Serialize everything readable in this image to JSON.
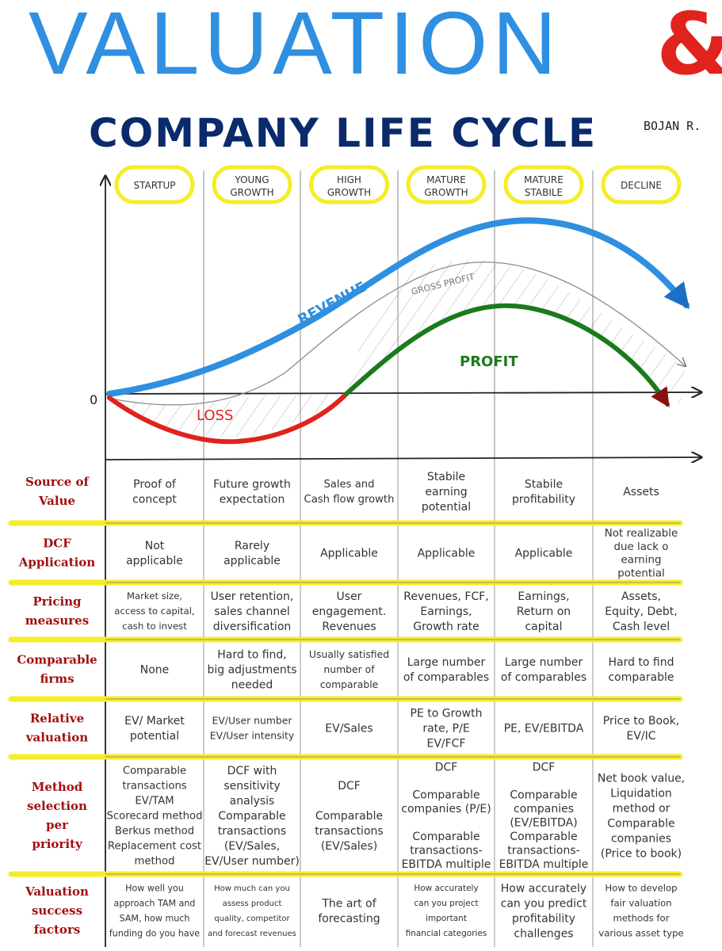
{
  "title": "VALUATION",
  "ampersand": "&",
  "subtitle": "COMPANY LIFE CYCLE",
  "author": "BOJAN R.",
  "stages": [
    {
      "line1": "STARTUP",
      "line2": ""
    },
    {
      "line1": "YOUNG",
      "line2": "GROWTH"
    },
    {
      "line1": "HIGH",
      "line2": "GROWTH"
    },
    {
      "line1": "MATURE",
      "line2": "GROWTH"
    },
    {
      "line1": "MATURE",
      "line2": "STABILE"
    },
    {
      "line1": "DECLINE",
      "line2": ""
    }
  ],
  "curves": {
    "zero": "0",
    "revenue": "REVENUE",
    "gross_profit": "GROSS PROFIT",
    "profit": "PROFIT",
    "loss": "LOSS"
  },
  "colors": {
    "title": "#2f8fe0",
    "ampersand": "#e0231c",
    "subtitle": "#0a2a6b",
    "revenue": "#2f8fe0",
    "profit": "#1c7a1c",
    "loss": "#e0231c",
    "row_label": "#a01010",
    "highlight": "#f6ec2a"
  },
  "rows": [
    {
      "label": [
        "Source of",
        "Value"
      ],
      "cells": [
        [
          "Proof of",
          "concept"
        ],
        [
          "Future growth",
          "expectation"
        ],
        [
          "Sales and",
          "Cash flow growth"
        ],
        [
          "Stabile",
          "earning",
          "potential"
        ],
        [
          "Stabile",
          "profitability"
        ],
        [
          "Assets"
        ]
      ]
    },
    {
      "label": [
        "DCF",
        "Application"
      ],
      "cells": [
        [
          "Not",
          "applicable"
        ],
        [
          "Rarely",
          "applicable"
        ],
        [
          "Applicable"
        ],
        [
          "Applicable"
        ],
        [
          "Applicable"
        ],
        [
          "Not realizable",
          "due lack o",
          "earning",
          "potential"
        ]
      ]
    },
    {
      "label": [
        "Pricing",
        "measures"
      ],
      "cells": [
        [
          "Market size,",
          "access to capital,",
          "cash to invest"
        ],
        [
          "User retention,",
          "sales channel",
          "diversification"
        ],
        [
          "User",
          "engagement.",
          "Revenues"
        ],
        [
          "Revenues, FCF,",
          "Earnings,",
          "Growth rate"
        ],
        [
          "Earnings,",
          "Return on",
          "capital"
        ],
        [
          "Assets,",
          "Equity, Debt,",
          "Cash level"
        ]
      ]
    },
    {
      "label": [
        "Comparable",
        "firms"
      ],
      "cells": [
        [
          "None"
        ],
        [
          "Hard to find,",
          "big adjustments",
          "needed"
        ],
        [
          "Usually satisfied",
          "number of",
          "comparable"
        ],
        [
          "Large number",
          "of comparables"
        ],
        [
          "Large number",
          "of comparables"
        ],
        [
          "Hard to find",
          "comparable"
        ]
      ]
    },
    {
      "label": [
        "Relative",
        "valuation"
      ],
      "cells": [
        [
          "EV/ Market",
          "potential"
        ],
        [
          "EV/User number",
          "EV/User intensity"
        ],
        [
          "EV/Sales"
        ],
        [
          "PE to Growth",
          "rate, P/E",
          "EV/FCF"
        ],
        [
          "PE, EV/EBITDA"
        ],
        [
          "Price to Book,",
          "EV/IC"
        ]
      ]
    },
    {
      "label": [
        "Method",
        "selection",
        "per",
        "priority"
      ],
      "cells": [
        [
          "Comparable",
          "transactions",
          "EV/TAM",
          "Scorecard method",
          "Berkus method",
          "Replacement cost",
          "method"
        ],
        [
          "DCF with",
          "sensitivity",
          "analysis",
          "Comparable",
          "transactions",
          "(EV/Sales,",
          "EV/User number)"
        ],
        [
          "DCF",
          "",
          "Comparable",
          "transactions",
          "(EV/Sales)"
        ],
        [
          "DCF",
          "",
          "Comparable",
          "companies (P/E)",
          "",
          "Comparable",
          "transactions-",
          "EBITDA multiple"
        ],
        [
          "DCF",
          "",
          "Comparable",
          "companies",
          "(EV/EBITDA)",
          "Comparable",
          "transactions-",
          "EBITDA multiple"
        ],
        [
          "Net book value,",
          "Liquidation",
          "method or",
          "Comparable",
          "companies",
          "(Price to book)"
        ]
      ]
    },
    {
      "label": [
        "Valuation",
        "success",
        "factors"
      ],
      "cells": [
        [
          "How well you",
          "approach TAM and",
          "SAM, how much",
          "funding do you have"
        ],
        [
          "How much can you",
          "assess product",
          "quality, competitor",
          "and forecast revenues"
        ],
        [
          "The art of",
          "forecasting"
        ],
        [
          "How accurately",
          "can you project",
          "important",
          "financial categories"
        ],
        [
          "How accurately",
          "can you predict",
          "profitability",
          "challenges"
        ],
        [
          "How to develop",
          "fair valuation",
          "methods for",
          "various asset type"
        ]
      ]
    }
  ]
}
